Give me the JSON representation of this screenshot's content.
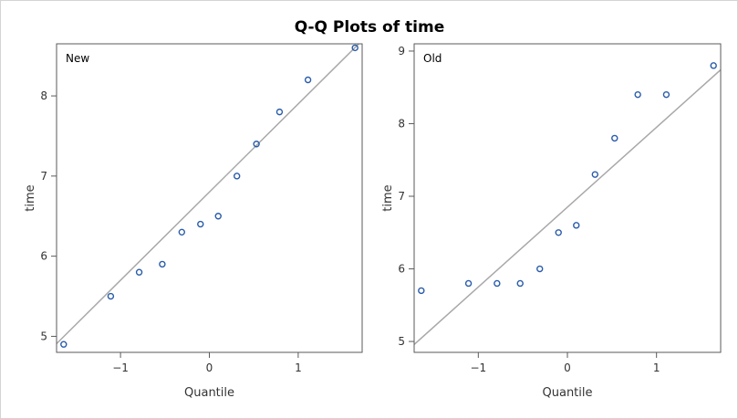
{
  "title": "Q-Q Plots of time",
  "chart_data": [
    {
      "type": "scatter",
      "panel_label": "New",
      "xlabel": "Quantile",
      "ylabel": "time",
      "xlim": [
        -1.72,
        1.72
      ],
      "ylim": [
        4.8,
        8.65
      ],
      "xticks": [
        -1,
        0,
        1
      ],
      "yticks": [
        5,
        6,
        7,
        8
      ],
      "reference_line": {
        "intercept": 6.8,
        "slope": 1.1
      },
      "points": [
        {
          "x": -1.64,
          "y": 4.9
        },
        {
          "x": -1.11,
          "y": 5.5
        },
        {
          "x": -0.79,
          "y": 5.8
        },
        {
          "x": -0.53,
          "y": 5.9
        },
        {
          "x": -0.31,
          "y": 6.3
        },
        {
          "x": -0.1,
          "y": 6.4
        },
        {
          "x": 0.1,
          "y": 6.5
        },
        {
          "x": 0.31,
          "y": 7.0
        },
        {
          "x": 0.53,
          "y": 7.4
        },
        {
          "x": 0.79,
          "y": 7.8
        },
        {
          "x": 1.11,
          "y": 8.2
        },
        {
          "x": 1.64,
          "y": 8.6
        }
      ]
    },
    {
      "type": "scatter",
      "panel_label": "Old",
      "xlabel": "Quantile",
      "ylabel": "time",
      "xlim": [
        -1.72,
        1.72
      ],
      "ylim": [
        4.85,
        9.1
      ],
      "xticks": [
        -1,
        0,
        1
      ],
      "yticks": [
        5,
        6,
        7,
        8,
        9
      ],
      "reference_line": {
        "intercept": 6.85,
        "slope": 1.1
      },
      "points": [
        {
          "x": -1.64,
          "y": 5.7
        },
        {
          "x": -1.11,
          "y": 5.8
        },
        {
          "x": -0.79,
          "y": 5.8
        },
        {
          "x": -0.53,
          "y": 5.8
        },
        {
          "x": -0.31,
          "y": 6.0
        },
        {
          "x": -0.1,
          "y": 6.5
        },
        {
          "x": 0.1,
          "y": 6.6
        },
        {
          "x": 0.31,
          "y": 7.3
        },
        {
          "x": 0.53,
          "y": 7.8
        },
        {
          "x": 0.79,
          "y": 8.4
        },
        {
          "x": 1.11,
          "y": 8.4
        },
        {
          "x": 1.64,
          "y": 8.8
        }
      ]
    }
  ]
}
